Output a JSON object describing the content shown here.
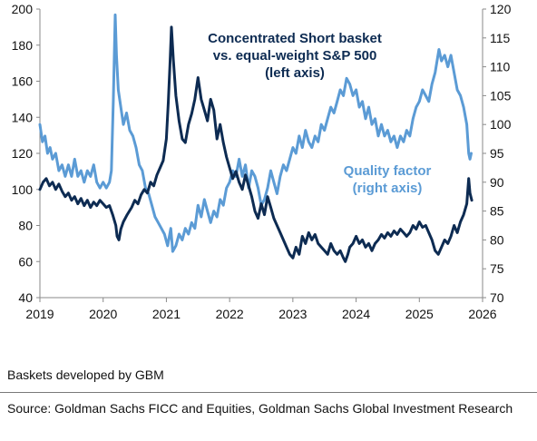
{
  "chart_data": {
    "type": "line",
    "x_ticks": [
      "2019",
      "2020",
      "2021",
      "2022",
      "2023",
      "2024",
      "2025",
      "2026"
    ],
    "left_axis": {
      "ticks": [
        "40",
        "60",
        "80",
        "100",
        "120",
        "140",
        "160",
        "180",
        "200"
      ],
      "ylim": [
        40,
        200
      ]
    },
    "right_axis": {
      "ticks": [
        "70",
        "75",
        "80",
        "85",
        "90",
        "95",
        "100",
        "105",
        "110",
        "115",
        "120"
      ],
      "ylim": [
        70,
        120
      ]
    },
    "xlim": [
      2019.0,
      2026.0
    ],
    "grid": false,
    "series": [
      {
        "name": "Concentrated Short basket vs. equal-weight S&P 500 (left axis)",
        "axis": "left",
        "color": "#0d2b52",
        "points": [
          [
            2019.0,
            100
          ],
          [
            2019.05,
            104
          ],
          [
            2019.1,
            106
          ],
          [
            2019.15,
            102
          ],
          [
            2019.2,
            104
          ],
          [
            2019.25,
            100
          ],
          [
            2019.3,
            103
          ],
          [
            2019.35,
            99
          ],
          [
            2019.4,
            96
          ],
          [
            2019.45,
            98
          ],
          [
            2019.5,
            94
          ],
          [
            2019.55,
            96
          ],
          [
            2019.6,
            92
          ],
          [
            2019.65,
            95
          ],
          [
            2019.7,
            91
          ],
          [
            2019.75,
            94
          ],
          [
            2019.8,
            90
          ],
          [
            2019.85,
            93
          ],
          [
            2019.9,
            91
          ],
          [
            2019.95,
            94
          ],
          [
            2020.0,
            92
          ],
          [
            2020.05,
            90
          ],
          [
            2020.1,
            91
          ],
          [
            2020.15,
            86
          ],
          [
            2020.2,
            80
          ],
          [
            2020.22,
            74
          ],
          [
            2020.25,
            72
          ],
          [
            2020.28,
            78
          ],
          [
            2020.32,
            82
          ],
          [
            2020.38,
            86
          ],
          [
            2020.45,
            90
          ],
          [
            2020.5,
            94
          ],
          [
            2020.55,
            92
          ],
          [
            2020.6,
            97
          ],
          [
            2020.65,
            100
          ],
          [
            2020.7,
            98
          ],
          [
            2020.75,
            104
          ],
          [
            2020.8,
            102
          ],
          [
            2020.85,
            108
          ],
          [
            2020.9,
            112
          ],
          [
            2020.95,
            116
          ],
          [
            2021.0,
            128
          ],
          [
            2021.03,
            148
          ],
          [
            2021.06,
            172
          ],
          [
            2021.08,
            190
          ],
          [
            2021.11,
            172
          ],
          [
            2021.15,
            152
          ],
          [
            2021.2,
            138
          ],
          [
            2021.25,
            128
          ],
          [
            2021.3,
            126
          ],
          [
            2021.35,
            136
          ],
          [
            2021.4,
            142
          ],
          [
            2021.45,
            150
          ],
          [
            2021.5,
            162
          ],
          [
            2021.55,
            150
          ],
          [
            2021.6,
            144
          ],
          [
            2021.65,
            138
          ],
          [
            2021.7,
            150
          ],
          [
            2021.75,
            144
          ],
          [
            2021.8,
            128
          ],
          [
            2021.85,
            136
          ],
          [
            2021.9,
            126
          ],
          [
            2021.95,
            118
          ],
          [
            2022.0,
            112
          ],
          [
            2022.05,
            106
          ],
          [
            2022.1,
            110
          ],
          [
            2022.15,
            104
          ],
          [
            2022.2,
            100
          ],
          [
            2022.25,
            108
          ],
          [
            2022.3,
            102
          ],
          [
            2022.35,
            96
          ],
          [
            2022.4,
            88
          ],
          [
            2022.45,
            84
          ],
          [
            2022.5,
            92
          ],
          [
            2022.55,
            86
          ],
          [
            2022.6,
            96
          ],
          [
            2022.65,
            90
          ],
          [
            2022.7,
            84
          ],
          [
            2022.75,
            80
          ],
          [
            2022.8,
            76
          ],
          [
            2022.85,
            72
          ],
          [
            2022.9,
            68
          ],
          [
            2022.95,
            64
          ],
          [
            2023.0,
            62
          ],
          [
            2023.05,
            68
          ],
          [
            2023.1,
            64
          ],
          [
            2023.15,
            74
          ],
          [
            2023.2,
            70
          ],
          [
            2023.25,
            76
          ],
          [
            2023.3,
            72
          ],
          [
            2023.35,
            75
          ],
          [
            2023.4,
            70
          ],
          [
            2023.45,
            68
          ],
          [
            2023.5,
            66
          ],
          [
            2023.55,
            64
          ],
          [
            2023.6,
            70
          ],
          [
            2023.65,
            66
          ],
          [
            2023.7,
            64
          ],
          [
            2023.75,
            66
          ],
          [
            2023.8,
            62
          ],
          [
            2023.83,
            60
          ],
          [
            2023.87,
            64
          ],
          [
            2023.9,
            68
          ],
          [
            2023.95,
            70
          ],
          [
            2024.0,
            74
          ],
          [
            2024.05,
            70
          ],
          [
            2024.1,
            72
          ],
          [
            2024.15,
            68
          ],
          [
            2024.2,
            70
          ],
          [
            2024.25,
            66
          ],
          [
            2024.3,
            70
          ],
          [
            2024.35,
            72
          ],
          [
            2024.4,
            75
          ],
          [
            2024.45,
            73
          ],
          [
            2024.5,
            76
          ],
          [
            2024.55,
            74
          ],
          [
            2024.6,
            77
          ],
          [
            2024.65,
            75
          ],
          [
            2024.7,
            78
          ],
          [
            2024.75,
            76
          ],
          [
            2024.8,
            74
          ],
          [
            2024.85,
            76
          ],
          [
            2024.9,
            80
          ],
          [
            2024.95,
            78
          ],
          [
            2025.0,
            82
          ],
          [
            2025.05,
            79
          ],
          [
            2025.1,
            80
          ],
          [
            2025.15,
            76
          ],
          [
            2025.2,
            72
          ],
          [
            2025.25,
            66
          ],
          [
            2025.3,
            64
          ],
          [
            2025.35,
            68
          ],
          [
            2025.4,
            72
          ],
          [
            2025.45,
            70
          ],
          [
            2025.5,
            74
          ],
          [
            2025.55,
            80
          ],
          [
            2025.6,
            76
          ],
          [
            2025.65,
            82
          ],
          [
            2025.7,
            86
          ],
          [
            2025.75,
            92
          ],
          [
            2025.78,
            106
          ],
          [
            2025.8,
            98
          ],
          [
            2025.83,
            94
          ]
        ]
      },
      {
        "name": "Quality factor (right axis)",
        "axis": "right",
        "color": "#5b9bd5",
        "points": [
          [
            2019.0,
            100
          ],
          [
            2019.04,
            97
          ],
          [
            2019.08,
            98
          ],
          [
            2019.12,
            95
          ],
          [
            2019.16,
            96
          ],
          [
            2019.2,
            94
          ],
          [
            2019.25,
            95
          ],
          [
            2019.3,
            92
          ],
          [
            2019.35,
            93
          ],
          [
            2019.4,
            91
          ],
          [
            2019.45,
            93
          ],
          [
            2019.5,
            91
          ],
          [
            2019.55,
            94
          ],
          [
            2019.6,
            91
          ],
          [
            2019.65,
            92
          ],
          [
            2019.7,
            90
          ],
          [
            2019.75,
            92
          ],
          [
            2019.8,
            91
          ],
          [
            2019.85,
            93
          ],
          [
            2019.9,
            90
          ],
          [
            2019.95,
            89
          ],
          [
            2020.0,
            90
          ],
          [
            2020.05,
            89
          ],
          [
            2020.1,
            90
          ],
          [
            2020.13,
            92
          ],
          [
            2020.16,
            104
          ],
          [
            2020.19,
            119
          ],
          [
            2020.21,
            112
          ],
          [
            2020.24,
            106
          ],
          [
            2020.28,
            103
          ],
          [
            2020.32,
            100
          ],
          [
            2020.37,
            102
          ],
          [
            2020.42,
            99
          ],
          [
            2020.47,
            98
          ],
          [
            2020.52,
            96
          ],
          [
            2020.57,
            93
          ],
          [
            2020.62,
            92
          ],
          [
            2020.67,
            89
          ],
          [
            2020.72,
            88
          ],
          [
            2020.77,
            86
          ],
          [
            2020.82,
            84
          ],
          [
            2020.87,
            83
          ],
          [
            2020.92,
            82
          ],
          [
            2020.97,
            81
          ],
          [
            2021.02,
            79
          ],
          [
            2021.07,
            82
          ],
          [
            2021.1,
            78
          ],
          [
            2021.15,
            79
          ],
          [
            2021.2,
            81
          ],
          [
            2021.25,
            80
          ],
          [
            2021.3,
            82
          ],
          [
            2021.35,
            81
          ],
          [
            2021.4,
            83
          ],
          [
            2021.45,
            82
          ],
          [
            2021.5,
            86
          ],
          [
            2021.55,
            84
          ],
          [
            2021.6,
            87
          ],
          [
            2021.65,
            85
          ],
          [
            2021.7,
            83
          ],
          [
            2021.75,
            85
          ],
          [
            2021.8,
            84
          ],
          [
            2021.85,
            87
          ],
          [
            2021.9,
            86
          ],
          [
            2021.95,
            89
          ],
          [
            2022.0,
            90
          ],
          [
            2022.05,
            92
          ],
          [
            2022.1,
            91
          ],
          [
            2022.15,
            94
          ],
          [
            2022.2,
            91
          ],
          [
            2022.25,
            93
          ],
          [
            2022.3,
            89
          ],
          [
            2022.35,
            92
          ],
          [
            2022.4,
            91
          ],
          [
            2022.45,
            89
          ],
          [
            2022.5,
            86
          ],
          [
            2022.55,
            87
          ],
          [
            2022.6,
            89
          ],
          [
            2022.65,
            92
          ],
          [
            2022.7,
            90
          ],
          [
            2022.75,
            88
          ],
          [
            2022.8,
            91
          ],
          [
            2022.85,
            93
          ],
          [
            2022.9,
            92
          ],
          [
            2022.95,
            94
          ],
          [
            2023.0,
            96
          ],
          [
            2023.05,
            95
          ],
          [
            2023.1,
            98
          ],
          [
            2023.15,
            96
          ],
          [
            2023.2,
            99
          ],
          [
            2023.25,
            97
          ],
          [
            2023.3,
            96
          ],
          [
            2023.35,
            98
          ],
          [
            2023.4,
            97
          ],
          [
            2023.45,
            100
          ],
          [
            2023.5,
            99
          ],
          [
            2023.55,
            101
          ],
          [
            2023.6,
            103
          ],
          [
            2023.65,
            102
          ],
          [
            2023.7,
            104
          ],
          [
            2023.75,
            106
          ],
          [
            2023.8,
            105
          ],
          [
            2023.85,
            108
          ],
          [
            2023.9,
            107
          ],
          [
            2023.95,
            105
          ],
          [
            2024.0,
            106
          ],
          [
            2024.05,
            103
          ],
          [
            2024.1,
            104
          ],
          [
            2024.15,
            101
          ],
          [
            2024.2,
            103
          ],
          [
            2024.25,
            100
          ],
          [
            2024.3,
            101
          ],
          [
            2024.35,
            98
          ],
          [
            2024.4,
            100
          ],
          [
            2024.45,
            98
          ],
          [
            2024.5,
            99
          ],
          [
            2024.55,
            97
          ],
          [
            2024.6,
            98
          ],
          [
            2024.65,
            96
          ],
          [
            2024.7,
            98
          ],
          [
            2024.75,
            97
          ],
          [
            2024.8,
            99
          ],
          [
            2024.85,
            98
          ],
          [
            2024.9,
            101
          ],
          [
            2024.95,
            103
          ],
          [
            2025.0,
            104
          ],
          [
            2025.05,
            106
          ],
          [
            2025.1,
            105
          ],
          [
            2025.15,
            104
          ],
          [
            2025.2,
            107
          ],
          [
            2025.25,
            109
          ],
          [
            2025.28,
            111
          ],
          [
            2025.31,
            113
          ],
          [
            2025.35,
            111
          ],
          [
            2025.4,
            112
          ],
          [
            2025.45,
            110
          ],
          [
            2025.5,
            112
          ],
          [
            2025.55,
            109
          ],
          [
            2025.6,
            106
          ],
          [
            2025.65,
            105
          ],
          [
            2025.7,
            103
          ],
          [
            2025.75,
            100
          ],
          [
            2025.78,
            95
          ],
          [
            2025.8,
            94
          ],
          [
            2025.82,
            95
          ]
        ]
      }
    ],
    "annotations": [
      {
        "lines": [
          "Concentrated Short basket",
          "vs. equal-weight S&P 500",
          "(left axis)"
        ],
        "color": "#0d2b52"
      },
      {
        "lines": [
          "Quality factor",
          "(right axis)"
        ],
        "color": "#5b9bd5"
      }
    ]
  },
  "footnote": "Baskets developed by GBM",
  "source": "Source: Goldman Sachs FICC and Equities, Goldman Sachs Global Investment Research"
}
